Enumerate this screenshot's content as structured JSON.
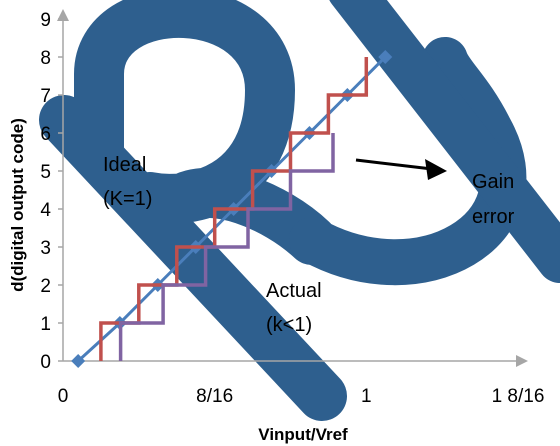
{
  "chart_data": {
    "type": "line",
    "xlabel": "Vinput/Vref",
    "ylabel": "d(digital output code)",
    "x_ticks": [
      {
        "value": 0,
        "label": "0"
      },
      {
        "value": 0.5,
        "label": "8/16"
      },
      {
        "value": 1,
        "label": "1"
      },
      {
        "value": 1.5,
        "label": "1  8/16"
      }
    ],
    "y_ticks": [
      0,
      1,
      2,
      3,
      4,
      5,
      6,
      7,
      8,
      9
    ],
    "xlim": [
      0,
      1.5
    ],
    "ylim": [
      0,
      9
    ],
    "series": [
      {
        "key": "ideal_line",
        "color": "#4A7EBB",
        "marker": "diamond",
        "points": [
          [
            0.05,
            0
          ],
          [
            0.1875,
            1
          ],
          [
            0.3125,
            2
          ],
          [
            0.4375,
            3
          ],
          [
            0.5625,
            4
          ],
          [
            0.6875,
            5
          ],
          [
            0.8125,
            6
          ],
          [
            0.9375,
            7
          ],
          [
            1.0625,
            8
          ]
        ]
      },
      {
        "key": "ideal_staircase",
        "color": "#C0504D",
        "points": [
          [
            0.125,
            0
          ],
          [
            0.125,
            1
          ],
          [
            0.25,
            1
          ],
          [
            0.25,
            2
          ],
          [
            0.375,
            2
          ],
          [
            0.375,
            3
          ],
          [
            0.5,
            3
          ],
          [
            0.5,
            4
          ],
          [
            0.625,
            4
          ],
          [
            0.625,
            5
          ],
          [
            0.75,
            5
          ],
          [
            0.75,
            6
          ],
          [
            0.875,
            6
          ],
          [
            0.875,
            7
          ],
          [
            1.0,
            7
          ],
          [
            1.0,
            8
          ]
        ]
      },
      {
        "key": "actual_staircase",
        "color": "#8064A2",
        "points": [
          [
            0.19,
            0
          ],
          [
            0.19,
            1
          ],
          [
            0.33,
            1
          ],
          [
            0.33,
            2
          ],
          [
            0.47,
            2
          ],
          [
            0.47,
            3
          ],
          [
            0.61,
            3
          ],
          [
            0.61,
            4
          ],
          [
            0.75,
            4
          ],
          [
            0.75,
            5
          ],
          [
            0.89,
            5
          ],
          [
            0.89,
            6
          ]
        ]
      }
    ],
    "annotations": {
      "ideal_line1": "Ideal",
      "ideal_line2": "(K=1)",
      "actual_line1": "Actual",
      "actual_line2": "(k<1)",
      "gain_line1": "Gain",
      "gain_line2": "error"
    },
    "grid": false,
    "legend": "none",
    "watermark_color": "#2E5F8E"
  }
}
